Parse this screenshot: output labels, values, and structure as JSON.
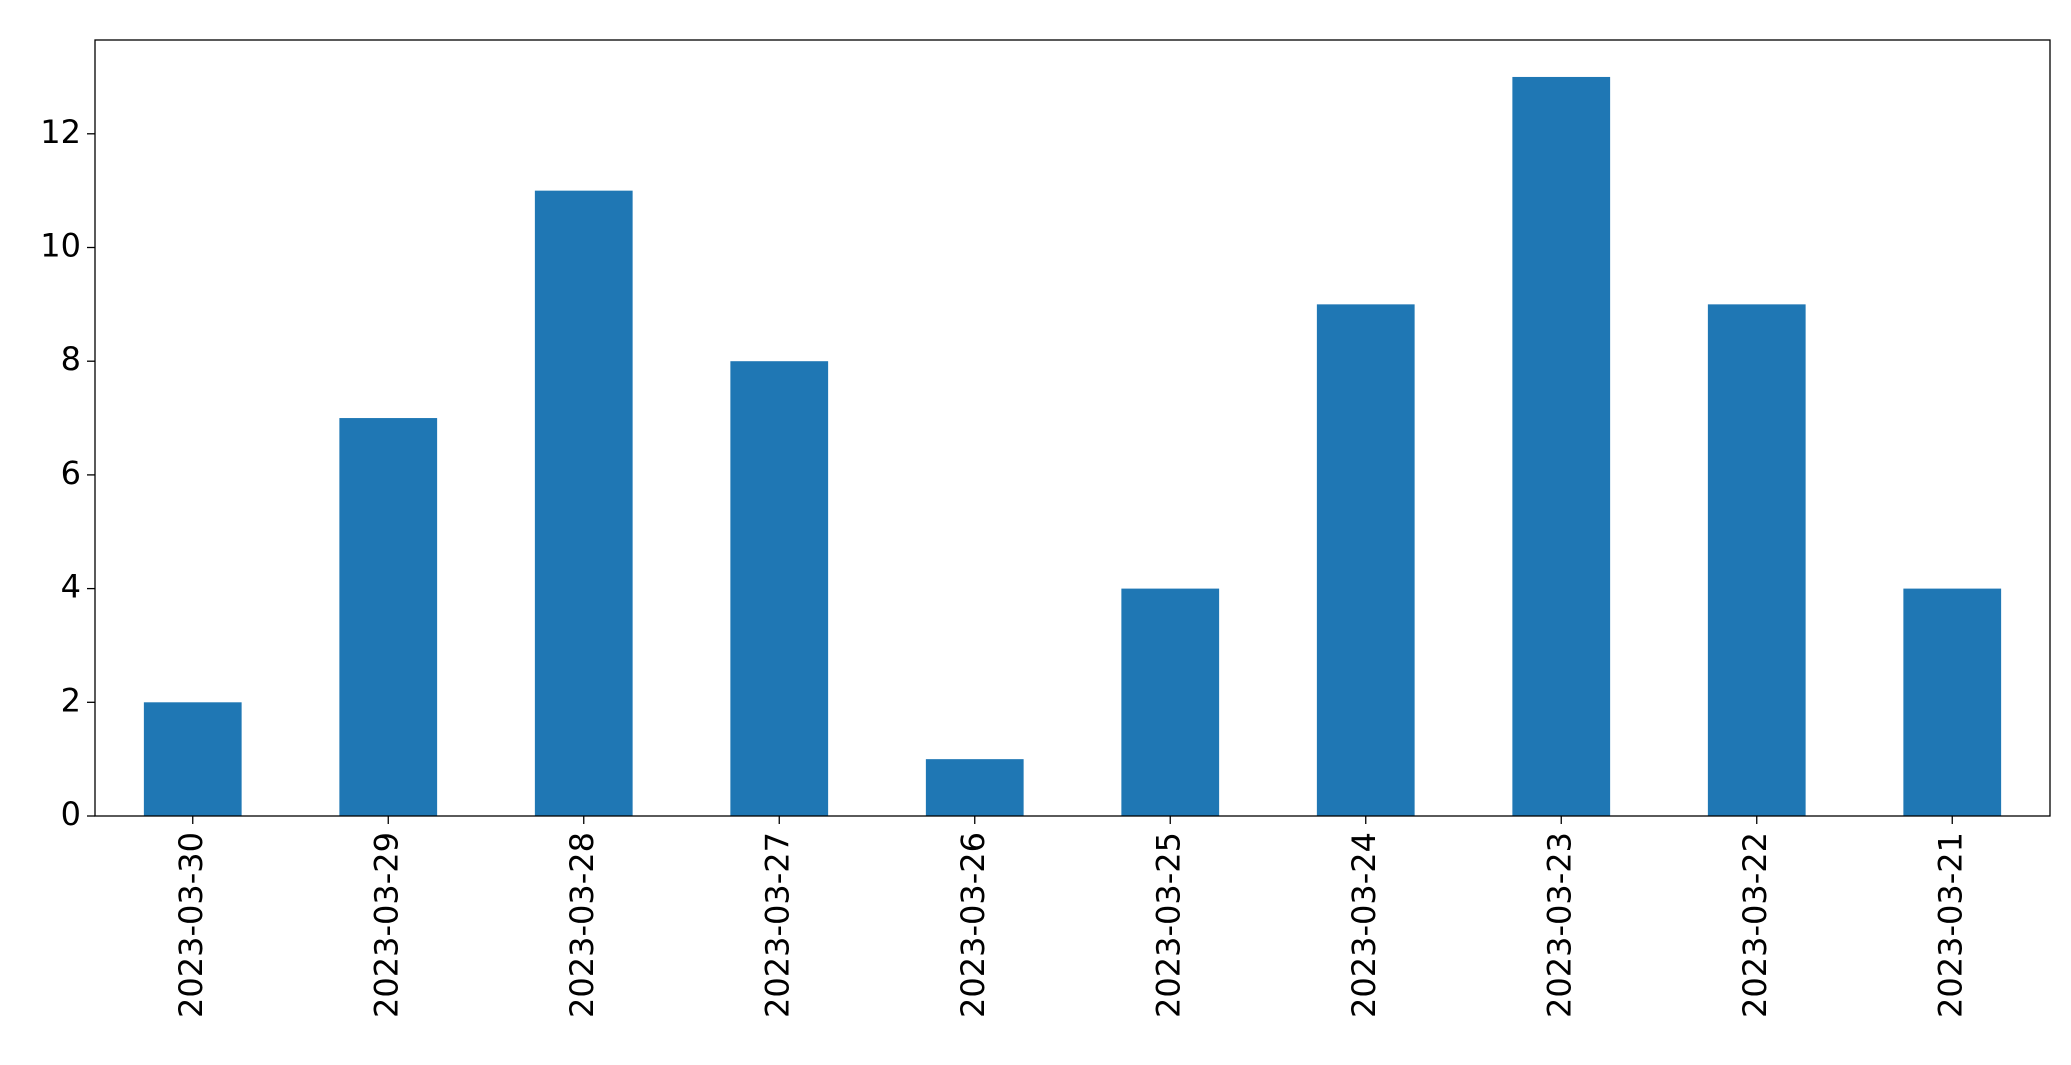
{
  "chart_data": {
    "type": "bar",
    "categories": [
      "2023-03-30",
      "2023-03-29",
      "2023-03-28",
      "2023-03-27",
      "2023-03-26",
      "2023-03-25",
      "2023-03-24",
      "2023-03-23",
      "2023-03-22",
      "2023-03-21"
    ],
    "values": [
      2,
      7,
      11,
      8,
      1,
      4,
      9,
      13,
      9,
      4
    ],
    "color": "#1f77b4",
    "ylim": [
      0,
      13.65
    ],
    "yticks": [
      0,
      2,
      4,
      6,
      8,
      10,
      12
    ],
    "grid": false
  }
}
